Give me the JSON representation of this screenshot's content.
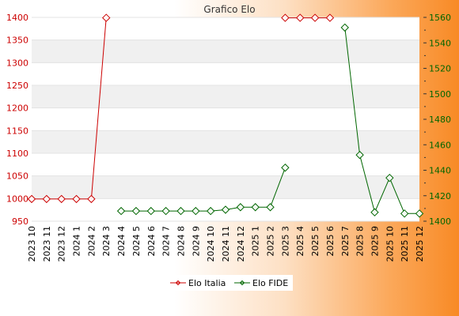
{
  "chart_data": {
    "type": "line",
    "title": "Grafico Elo",
    "categories": [
      "2023 10",
      "2023 11",
      "2023 12",
      "2024 1",
      "2024 2",
      "2024 3",
      "2024 4",
      "2024 5",
      "2024 6",
      "2024 7",
      "2024 8",
      "2024 9",
      "2024 10",
      "2024 11",
      "2024 12",
      "2025 1",
      "2025 2",
      "2025 3",
      "2025 4",
      "2025 5",
      "2025 6",
      "2025 7",
      "2025 8",
      "2025 9",
      "2025 10",
      "2025 11",
      "2025 12"
    ],
    "y_left": {
      "ylim": [
        950,
        1400
      ],
      "ticks": [
        950,
        1000,
        1050,
        1100,
        1150,
        1200,
        1250,
        1300,
        1350,
        1400
      ],
      "color": "#cc0000"
    },
    "y_right": {
      "ylim": [
        1400,
        1560
      ],
      "ticks": [
        1400,
        1420,
        1440,
        1460,
        1480,
        1500,
        1520,
        1540,
        1560
      ],
      "color": "#006600"
    },
    "series": [
      {
        "name": "Elo Italia",
        "axis": "left",
        "color": "#cc0000",
        "values": [
          999,
          999,
          999,
          999,
          999,
          1399,
          null,
          null,
          null,
          null,
          null,
          null,
          null,
          null,
          null,
          null,
          null,
          1399,
          1399,
          1399,
          1399,
          null,
          null,
          null,
          null,
          null,
          null
        ]
      },
      {
        "name": "Elo FIDE",
        "axis": "right",
        "color": "#006600",
        "values": [
          null,
          null,
          null,
          null,
          null,
          null,
          1408,
          1408,
          1408,
          1408,
          1408,
          1408,
          1408,
          1409,
          1411,
          1411,
          1411,
          1442,
          null,
          null,
          null,
          1552,
          1452,
          1407,
          1434,
          1406,
          1406
        ]
      }
    ],
    "grid": true,
    "legend": "bottom-center"
  }
}
